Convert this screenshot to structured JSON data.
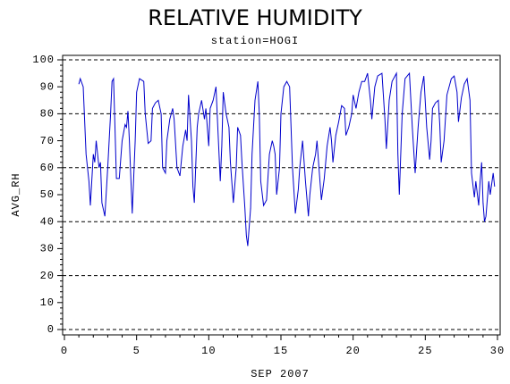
{
  "chart_data": {
    "type": "line",
    "title": "RELATIVE HUMIDITY",
    "subtitle": "station=HOGI",
    "x_label": "SEP 2007",
    "y_label": "AVG_RH",
    "xlim": [
      0,
      30
    ],
    "xticks": [
      0,
      5,
      10,
      15,
      20,
      25,
      30
    ],
    "ylim": [
      0,
      100
    ],
    "yticks": [
      0,
      10,
      20,
      30,
      40,
      50,
      60,
      70,
      80,
      90,
      100
    ],
    "ygrid": [
      0,
      20,
      40,
      60,
      80,
      100
    ],
    "series": [
      {
        "name": "AVG_RH",
        "color": "#0000cc",
        "x": [
          1.0,
          1.1,
          1.3,
          1.5,
          1.7,
          1.8,
          2.0,
          2.1,
          2.2,
          2.4,
          2.5,
          2.6,
          2.8,
          3.0,
          3.2,
          3.3,
          3.4,
          3.5,
          3.6,
          3.8,
          4.0,
          4.2,
          4.3,
          4.4,
          4.5,
          4.7,
          4.9,
          5.0,
          5.2,
          5.5,
          5.6,
          5.8,
          6.0,
          6.1,
          6.3,
          6.5,
          6.7,
          6.8,
          7.0,
          7.1,
          7.3,
          7.5,
          7.6,
          7.8,
          8.0,
          8.2,
          8.4,
          8.5,
          8.6,
          8.8,
          8.9,
          9.0,
          9.2,
          9.3,
          9.5,
          9.7,
          9.8,
          10.0,
          10.1,
          10.3,
          10.5,
          10.6,
          10.8,
          10.9,
          11.0,
          11.2,
          11.4,
          11.5,
          11.7,
          11.9,
          12.0,
          12.2,
          12.3,
          12.5,
          12.6,
          12.7,
          12.9,
          13.0,
          13.2,
          13.4,
          13.5,
          13.6,
          13.8,
          14.0,
          14.2,
          14.4,
          14.5,
          14.6,
          14.7,
          14.9,
          15.0,
          15.2,
          15.4,
          15.6,
          15.8,
          16.0,
          16.2,
          16.3,
          16.5,
          16.7,
          16.9,
          17.0,
          17.2,
          17.4,
          17.5,
          17.7,
          17.8,
          18.0,
          18.2,
          18.4,
          18.5,
          18.6,
          18.8,
          19.0,
          19.2,
          19.4,
          19.5,
          19.7,
          19.9,
          20.0,
          20.2,
          20.4,
          20.6,
          20.8,
          21.0,
          21.2,
          21.3,
          21.5,
          21.7,
          22.0,
          22.2,
          22.3,
          22.5,
          22.7,
          23.0,
          23.1,
          23.2,
          23.4,
          23.6,
          23.9,
          24.1,
          24.3,
          24.5,
          24.7,
          24.9,
          25.1,
          25.3,
          25.4,
          25.5,
          25.7,
          25.9,
          26.0,
          26.1,
          26.3,
          26.5,
          26.8,
          27.0,
          27.2,
          27.3,
          27.5,
          27.7,
          27.9,
          28.1,
          28.2,
          28.4,
          28.5,
          28.7,
          28.8,
          28.9,
          29.0,
          29.1,
          29.2,
          29.4,
          29.5,
          29.7,
          29.8
        ],
        "values": [
          91,
          93,
          90,
          65,
          55,
          46,
          65,
          62,
          70,
          60,
          62,
          47,
          42,
          60,
          80,
          92,
          93,
          75,
          56,
          56,
          70,
          76,
          75,
          81,
          70,
          43,
          70,
          88,
          93,
          92,
          80,
          69,
          70,
          82,
          84,
          85,
          80,
          60,
          58,
          70,
          78,
          82,
          78,
          60,
          57,
          68,
          74,
          70,
          87,
          70,
          53,
          47,
          75,
          80,
          85,
          78,
          82,
          68,
          82,
          85,
          90,
          78,
          55,
          68,
          88,
          80,
          75,
          62,
          47,
          60,
          75,
          72,
          62,
          45,
          35,
          31,
          45,
          65,
          85,
          92,
          80,
          55,
          46,
          48,
          65,
          70,
          68,
          65,
          50,
          60,
          80,
          90,
          92,
          90,
          60,
          43,
          52,
          60,
          70,
          55,
          42,
          50,
          60,
          65,
          70,
          55,
          48,
          56,
          68,
          75,
          70,
          62,
          72,
          77,
          83,
          82,
          72,
          75,
          80,
          87,
          82,
          88,
          92,
          92,
          95,
          85,
          78,
          90,
          94,
          95,
          78,
          67,
          85,
          92,
          95,
          65,
          50,
          80,
          93,
          95,
          75,
          58,
          75,
          88,
          94,
          75,
          63,
          70,
          82,
          84,
          85,
          76,
          62,
          70,
          87,
          93,
          94,
          88,
          77,
          86,
          91,
          93,
          85,
          58,
          49,
          55,
          46,
          55,
          62,
          47,
          40,
          42,
          55,
          50,
          58,
          53
        ]
      }
    ]
  }
}
